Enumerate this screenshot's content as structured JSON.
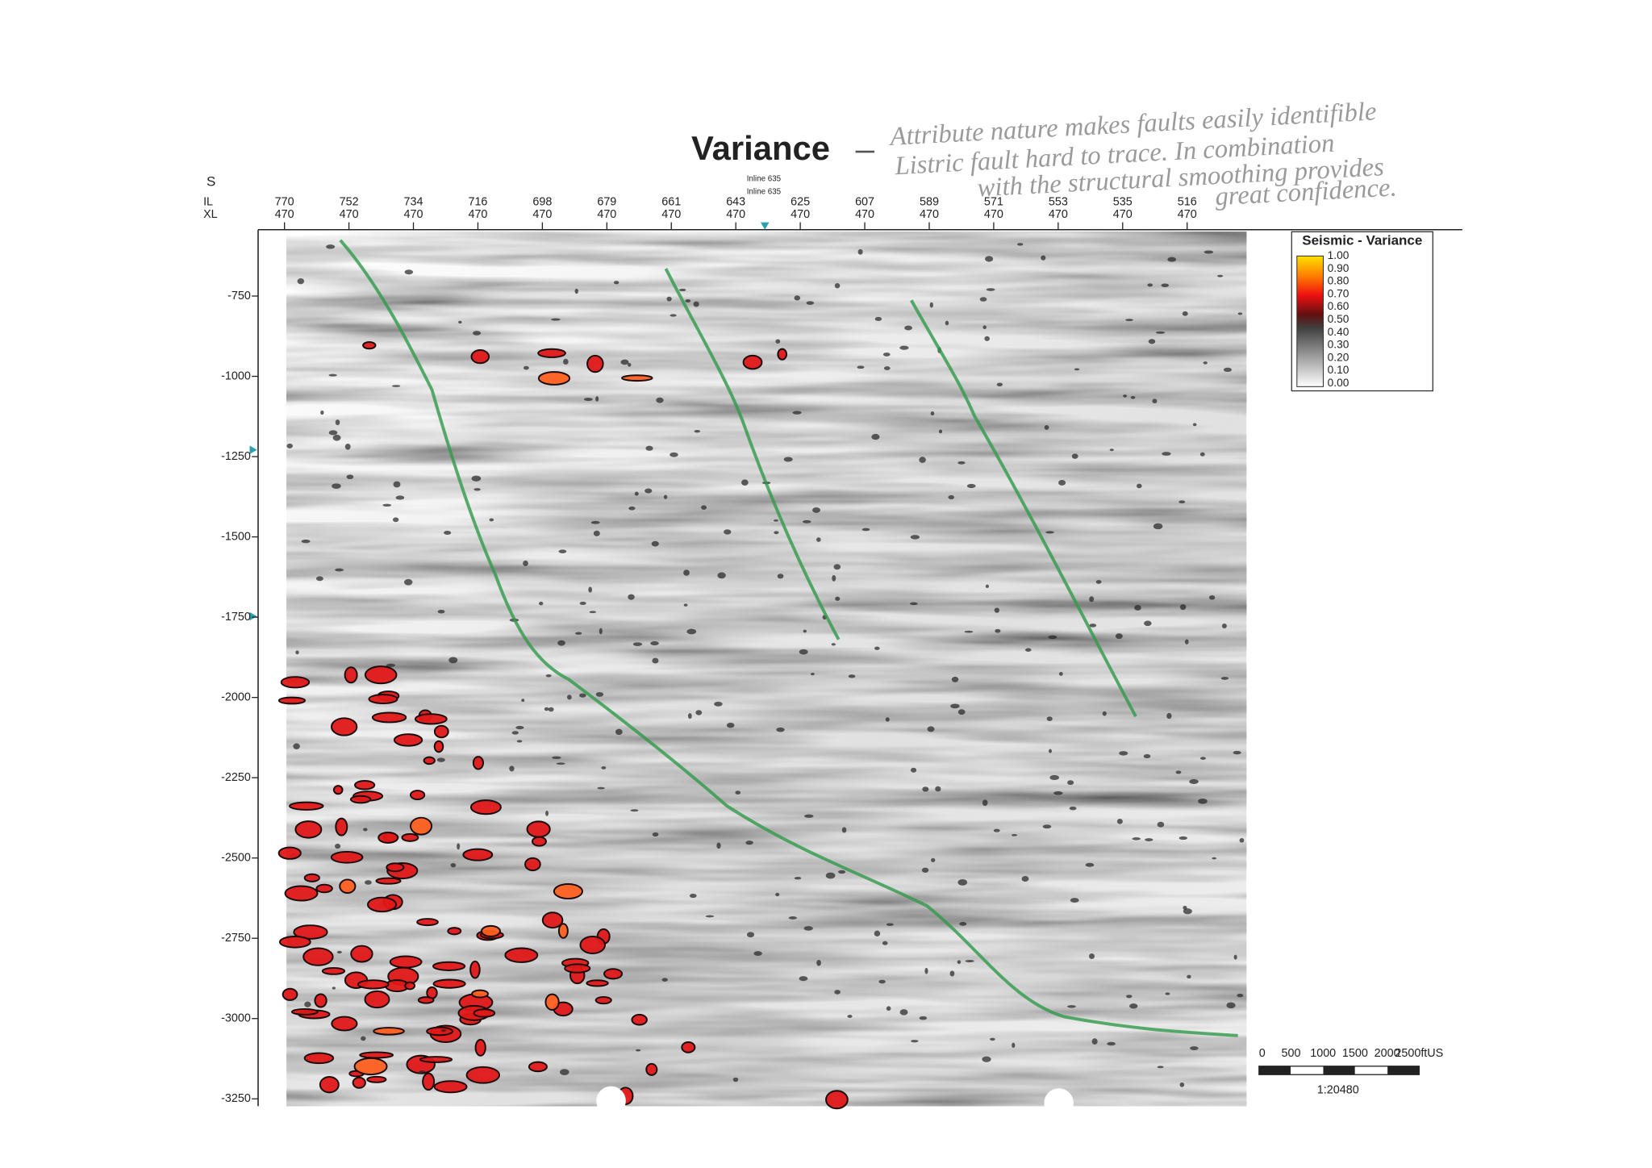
{
  "title": "Variance",
  "annotation": [
    "Attribute nature makes faults easily identifible",
    "Listric fault hard to trace. In combination",
    "with the structural smoothing provides",
    "great confidence."
  ],
  "axes": {
    "direction": "S",
    "il_label": "IL",
    "xl_label": "XL",
    "inline_markers": [
      "Inline 635",
      "Inline 635"
    ],
    "il": [
      770,
      752,
      734,
      716,
      698,
      679,
      661,
      643,
      625,
      607,
      589,
      571,
      553,
      535,
      516
    ],
    "xl": [
      470,
      470,
      470,
      470,
      470,
      470,
      470,
      470,
      470,
      470,
      470,
      470,
      470,
      470,
      470
    ],
    "depth": [
      -750,
      -1000,
      -1250,
      -1500,
      -1750,
      -2000,
      -2250,
      -2500,
      -2750,
      -3000,
      -3250
    ]
  },
  "legend": {
    "title": "Seismic - Variance",
    "ticks": [
      "1.00",
      "0.90",
      "0.80",
      "0.70",
      "0.60",
      "0.50",
      "0.40",
      "0.30",
      "0.20",
      "0.10",
      "0.00"
    ]
  },
  "scale_bar": {
    "labels": [
      "0",
      "500",
      "1000",
      "1500",
      "2000",
      "2500ftUS"
    ],
    "ratio": "1:20480"
  }
}
